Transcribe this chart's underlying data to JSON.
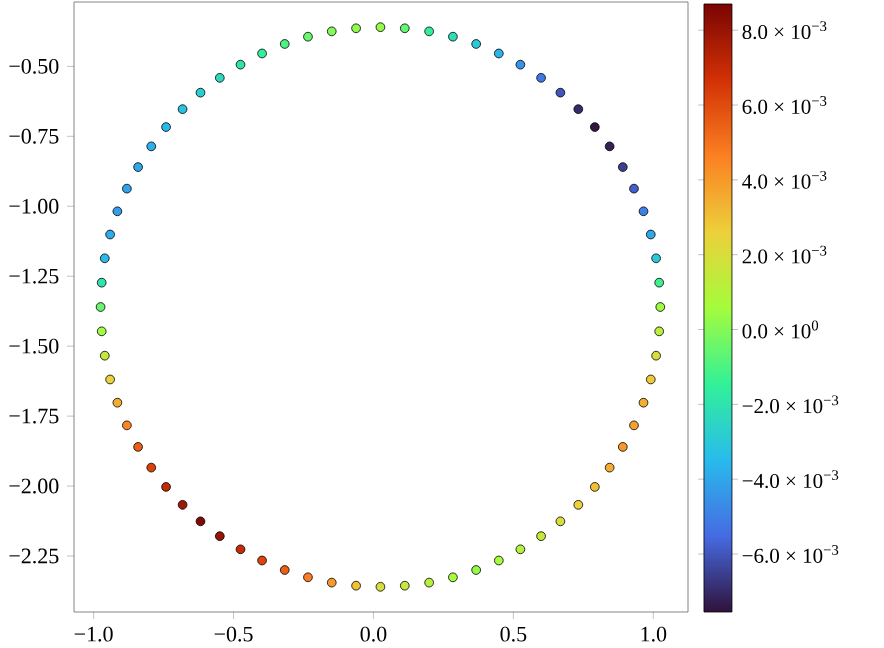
{
  "chart_data": {
    "type": "scatter",
    "x": [
      1.025,
      1.021,
      1.01,
      0.991,
      0.965,
      0.931,
      0.891,
      0.844,
      0.791,
      0.732,
      0.668,
      0.599,
      0.525,
      0.448,
      0.367,
      0.284,
      0.199,
      0.112,
      0.025,
      -0.062,
      -0.149,
      -0.234,
      -0.317,
      -0.398,
      -0.475,
      -0.549,
      -0.618,
      -0.682,
      -0.741,
      -0.794,
      -0.841,
      -0.881,
      -0.915,
      -0.941,
      -0.96,
      -0.971,
      -0.975,
      -0.971,
      -0.96,
      -0.941,
      -0.915,
      -0.881,
      -0.841,
      -0.794,
      -0.741,
      -0.682,
      -0.618,
      -0.549,
      -0.475,
      -0.398,
      -0.317,
      -0.234,
      -0.149,
      -0.062,
      0.025,
      0.112,
      0.199,
      0.284,
      0.367,
      0.448,
      0.525,
      0.599,
      0.668,
      0.732,
      0.791,
      0.844,
      0.891,
      0.931,
      0.965,
      0.991,
      1.01,
      1.021
    ],
    "values": [
      -1.36,
      -1.273,
      -1.186,
      -1.101,
      -1.018,
      -0.937,
      -0.86,
      -0.786,
      -0.717,
      -0.653,
      -0.594,
      -0.541,
      -0.494,
      -0.454,
      -0.42,
      -0.394,
      -0.375,
      -0.364,
      -0.36,
      -0.364,
      -0.375,
      -0.394,
      -0.42,
      -0.454,
      -0.494,
      -0.541,
      -0.594,
      -0.653,
      -0.717,
      -0.786,
      -0.86,
      -0.937,
      -1.018,
      -1.101,
      -1.186,
      -1.273,
      -1.36,
      -1.447,
      -1.534,
      -1.619,
      -1.702,
      -1.783,
      -1.86,
      -1.934,
      -2.003,
      -2.067,
      -2.126,
      -2.179,
      -2.226,
      -2.266,
      -2.3,
      -2.326,
      -2.345,
      -2.356,
      -2.36,
      -2.356,
      -2.345,
      -2.326,
      -2.3,
      -2.266,
      -2.226,
      -2.179,
      -2.126,
      -2.067,
      -2.003,
      -1.934,
      -1.86,
      -1.783,
      -1.702,
      -1.619,
      -1.534,
      -1.447
    ],
    "cvalues": [
      0.0005,
      -0.0012,
      -0.003,
      -0.004,
      -0.005,
      -0.0058,
      -0.0065,
      -0.0072,
      -0.0075,
      -0.007,
      -0.006,
      -0.0052,
      -0.0045,
      -0.0037,
      -0.003,
      -0.0022,
      -0.0015,
      -0.0006,
      0.0003,
      0.0002,
      0.0,
      -0.0005,
      -0.001,
      -0.0015,
      -0.002,
      -0.0024,
      -0.0028,
      -0.0032,
      -0.0035,
      -0.0038,
      -0.004,
      -0.0041,
      -0.0042,
      -0.0039,
      -0.0035,
      -0.002,
      -0.0005,
      0.0005,
      0.0015,
      0.0025,
      0.0035,
      0.0045,
      0.0055,
      0.0063,
      0.007,
      0.0078,
      0.0085,
      0.008,
      0.007,
      0.0062,
      0.0055,
      0.0047,
      0.004,
      0.003,
      0.002,
      0.0015,
      0.001,
      0.0006,
      0.0003,
      0.0006,
      0.001,
      0.0015,
      0.002,
      0.0025,
      0.003,
      0.0035,
      0.004,
      0.0038,
      0.0035,
      0.0028,
      0.002,
      0.0012
    ],
    "xlim": [
      -1.07,
      1.124
    ],
    "ylim": [
      -2.45,
      -0.27
    ],
    "xticks": [
      {
        "value": -1.0,
        "label": "−1.0"
      },
      {
        "value": -0.5,
        "label": "−0.5"
      },
      {
        "value": 0.0,
        "label": "0.0"
      },
      {
        "value": 0.5,
        "label": "0.5"
      },
      {
        "value": 1.0,
        "label": "1.0"
      }
    ],
    "yticks": [
      {
        "value": -0.5,
        "label": "−0.50"
      },
      {
        "value": -0.75,
        "label": "−0.75"
      },
      {
        "value": -1.0,
        "label": "−1.00"
      },
      {
        "value": -1.25,
        "label": "−1.25"
      },
      {
        "value": -1.5,
        "label": "−1.50"
      },
      {
        "value": -1.75,
        "label": "−1.75"
      },
      {
        "value": -2.0,
        "label": "−2.00"
      },
      {
        "value": -2.25,
        "label": "−2.25"
      }
    ],
    "clim": [
      -0.00755,
      0.0087
    ],
    "cticks": [
      {
        "value": 0.008,
        "label": "8.0 × 10$^{−3}$"
      },
      {
        "value": 0.006,
        "label": "6.0 × 10$^{−3}$"
      },
      {
        "value": 0.004,
        "label": "4.0 × 10$^{−3}$"
      },
      {
        "value": 0.002,
        "label": "2.0 × 10$^{−3}$"
      },
      {
        "value": 0.0,
        "label": "0.0 × 10$^{0}$"
      },
      {
        "value": -0.002,
        "label": "−2.0 × 10$^{−3}$"
      },
      {
        "value": -0.004,
        "label": "−4.0 × 10$^{−3}$"
      },
      {
        "value": -0.006,
        "label": "−6.0 × 10$^{−3}$"
      }
    ]
  }
}
